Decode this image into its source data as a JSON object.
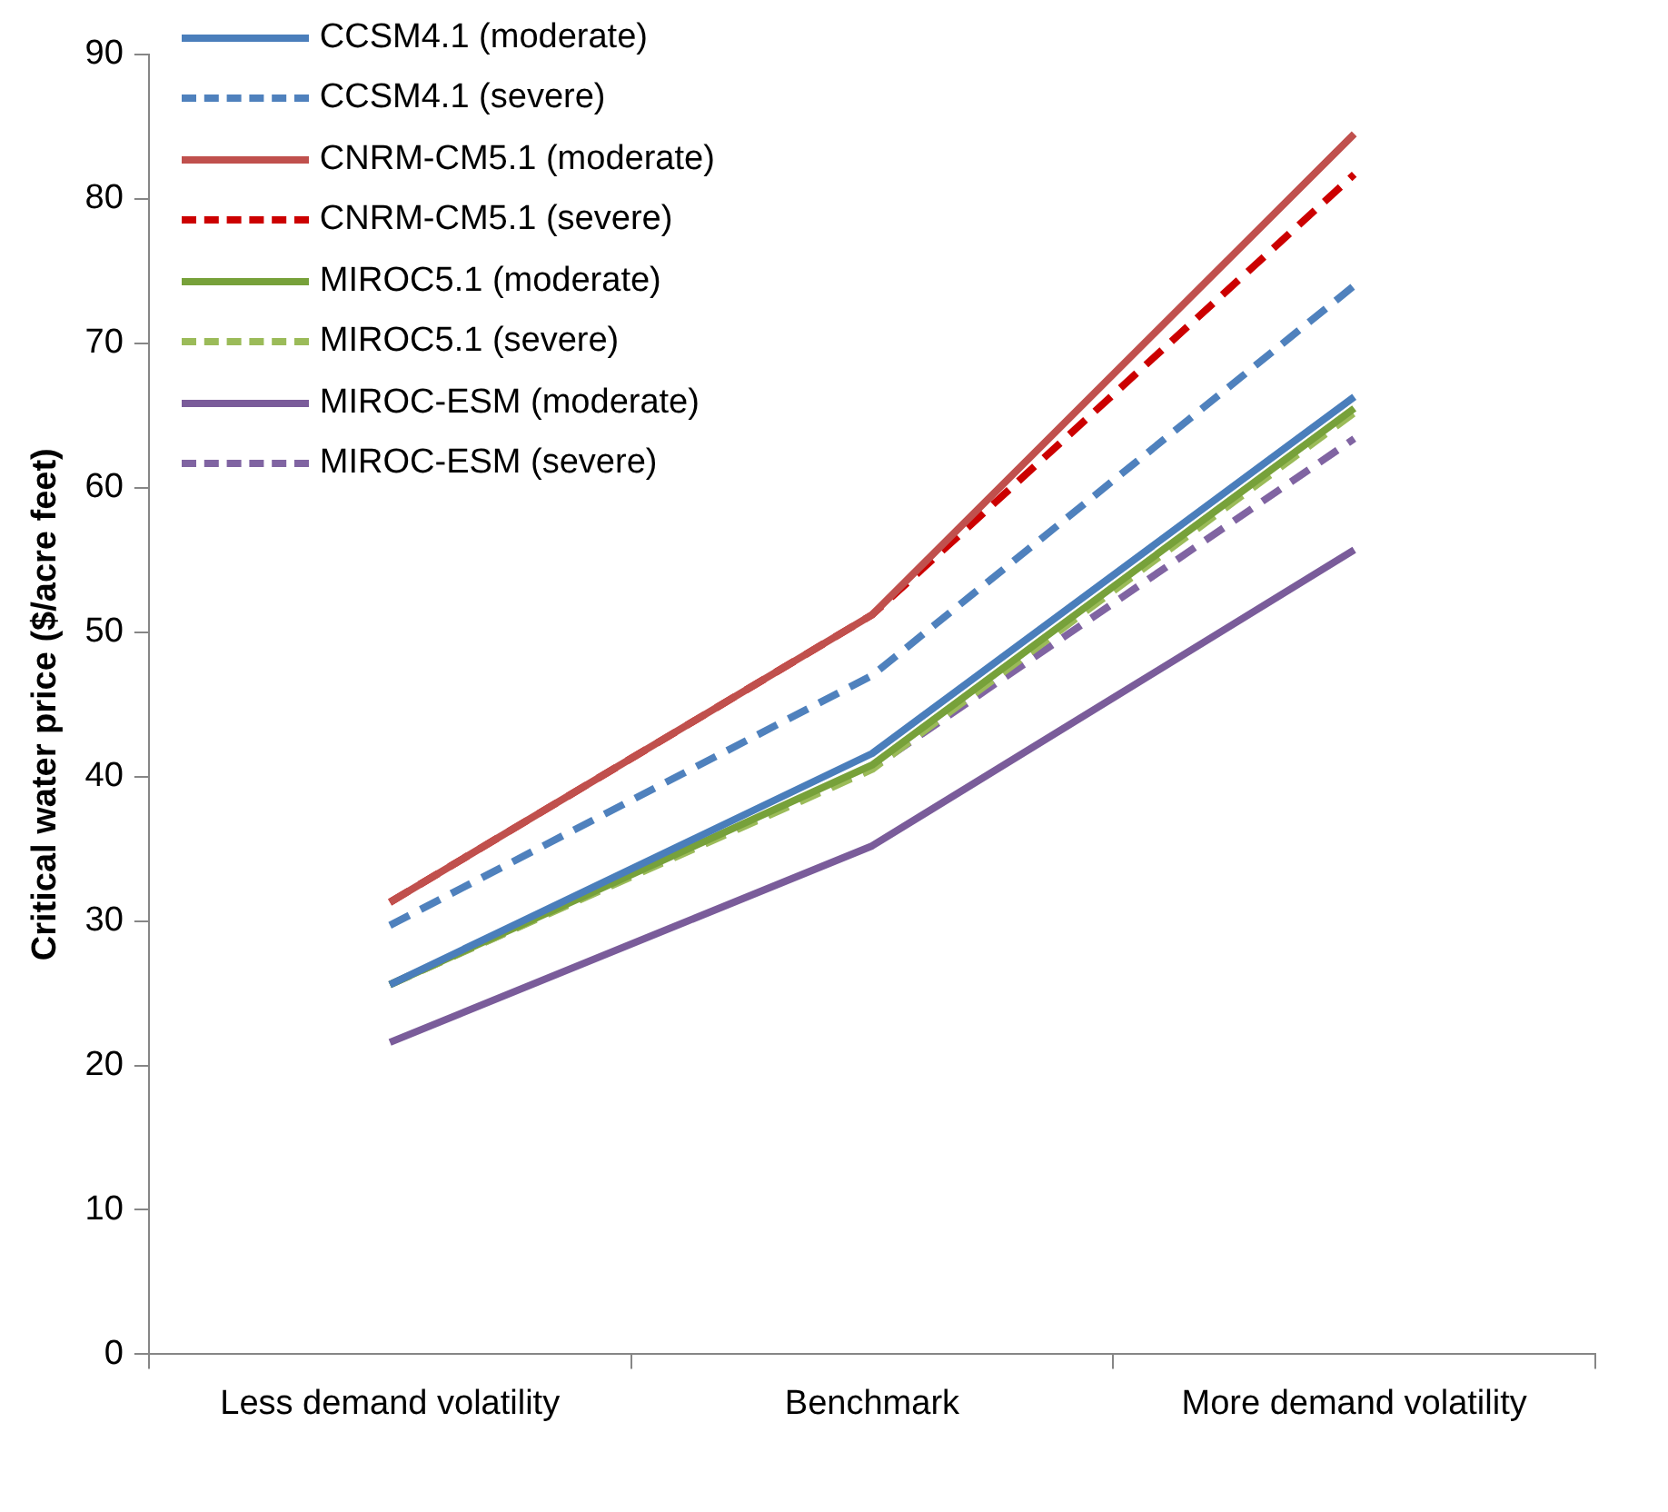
{
  "chart_data": {
    "type": "line",
    "ylabel": "Critical water price ($/acre feet)",
    "categories": [
      "Less demand volatility",
      "Benchmark",
      "More demand volatility"
    ],
    "series": [
      {
        "name": "CCSM4.1 (moderate)",
        "color": "#4a7ebb",
        "line_style": "solid",
        "values": [
          25.6,
          41.6,
          66.3
        ]
      },
      {
        "name": "CCSM4.1 (severe)",
        "color": "#4f81bd",
        "line_style": "dashed",
        "values": [
          29.7,
          47,
          74
        ]
      },
      {
        "name": "CNRM-CM5.1 (moderate)",
        "color": "#c0504d",
        "line_style": "solid",
        "values": [
          31.3,
          51.2,
          84.5
        ]
      },
      {
        "name": "CNRM-CM5.1 (severe)",
        "color": "#cc0000",
        "line_style": "dashed",
        "values": [
          31.3,
          51.2,
          81.7
        ]
      },
      {
        "name": "MIROC5.1 (moderate)",
        "color": "#77a13a",
        "line_style": "solid",
        "values": [
          25.6,
          40.8,
          65.5
        ]
      },
      {
        "name": "MIROC5.1 (severe)",
        "color": "#9bbb59",
        "line_style": "dashed",
        "values": [
          25.6,
          40.5,
          65.2
        ]
      },
      {
        "name": "MIROC-ESM (moderate)",
        "color": "#7a5c9a",
        "line_style": "solid",
        "values": [
          21.6,
          35.2,
          55.7
        ]
      },
      {
        "name": "MIROC-ESM (severe)",
        "color": "#8064a2",
        "line_style": "dashed",
        "values": [
          25.6,
          40.6,
          63.4
        ]
      }
    ],
    "ylim": [
      0,
      90
    ],
    "yticks": [
      0,
      10,
      20,
      30,
      40,
      50,
      60,
      70,
      80,
      90
    ],
    "grid": false,
    "legend": "top left",
    "marker": "none"
  }
}
